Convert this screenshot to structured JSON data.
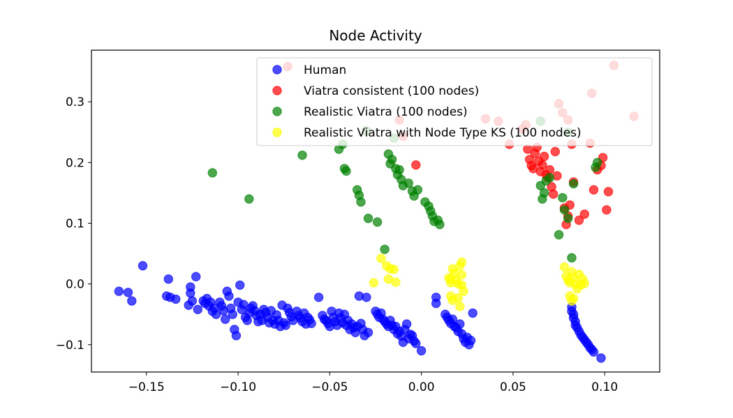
{
  "chart_data": {
    "type": "scatter",
    "title": "Node Activity",
    "xlabel": "",
    "ylabel": "",
    "xlim": [
      -0.18,
      0.13
    ],
    "ylim": [
      -0.145,
      0.385
    ],
    "xticks": [
      -0.15,
      -0.1,
      -0.05,
      0.0,
      0.05,
      0.1
    ],
    "xtick_labels": [
      "−0.15",
      "−0.10",
      "−0.05",
      "0.00",
      "0.05",
      "0.10"
    ],
    "yticks": [
      -0.1,
      0.0,
      0.1,
      0.2,
      0.3
    ],
    "ytick_labels": [
      "−0.1",
      "0.0",
      "0.1",
      "0.2",
      "0.3"
    ],
    "grid": false,
    "legend_position": "top-right",
    "series": [
      {
        "name": "Human",
        "color": "#0000ff",
        "points": [
          [
            -0.165,
            -0.012
          ],
          [
            -0.16,
            -0.014
          ],
          [
            -0.158,
            -0.028
          ],
          [
            -0.152,
            0.03
          ],
          [
            -0.138,
            0.008
          ],
          [
            -0.139,
            -0.02
          ],
          [
            -0.137,
            -0.022
          ],
          [
            -0.134,
            -0.025
          ],
          [
            -0.127,
            -0.035
          ],
          [
            -0.126,
            -0.005
          ],
          [
            -0.126,
            -0.015
          ],
          [
            -0.125,
            -0.028
          ],
          [
            -0.123,
            0.012
          ],
          [
            -0.122,
            -0.042
          ],
          [
            -0.119,
            -0.028
          ],
          [
            -0.118,
            -0.032
          ],
          [
            -0.117,
            -0.024
          ],
          [
            -0.116,
            -0.036
          ],
          [
            -0.115,
            -0.03
          ],
          [
            -0.114,
            -0.045
          ],
          [
            -0.113,
            -0.04
          ],
          [
            -0.112,
            -0.05
          ],
          [
            -0.11,
            -0.03
          ],
          [
            -0.109,
            -0.036
          ],
          [
            -0.108,
            -0.044
          ],
          [
            -0.107,
            -0.058
          ],
          [
            -0.106,
            -0.012
          ],
          [
            -0.105,
            -0.02
          ],
          [
            -0.104,
            -0.04
          ],
          [
            -0.103,
            -0.05
          ],
          [
            -0.102,
            -0.075
          ],
          [
            -0.101,
            -0.085
          ],
          [
            -0.1,
            -0.03
          ],
          [
            -0.099,
            -0.002
          ],
          [
            -0.098,
            -0.042
          ],
          [
            -0.097,
            -0.034
          ],
          [
            -0.096,
            -0.055
          ],
          [
            -0.095,
            -0.06
          ],
          [
            -0.094,
            -0.048
          ],
          [
            -0.093,
            -0.04
          ],
          [
            -0.092,
            -0.036
          ],
          [
            -0.091,
            -0.044
          ],
          [
            -0.09,
            -0.052
          ],
          [
            -0.089,
            -0.062
          ],
          [
            -0.088,
            -0.05
          ],
          [
            -0.087,
            -0.06
          ],
          [
            -0.086,
            -0.042
          ],
          [
            -0.085,
            -0.047
          ],
          [
            -0.084,
            -0.055
          ],
          [
            -0.083,
            -0.064
          ],
          [
            -0.082,
            -0.044
          ],
          [
            -0.081,
            -0.06
          ],
          [
            -0.08,
            -0.066
          ],
          [
            -0.079,
            -0.051
          ],
          [
            -0.078,
            -0.06
          ],
          [
            -0.077,
            -0.07
          ],
          [
            -0.076,
            -0.035
          ],
          [
            -0.075,
            -0.064
          ],
          [
            -0.074,
            -0.068
          ],
          [
            -0.073,
            -0.04
          ],
          [
            -0.072,
            -0.047
          ],
          [
            -0.071,
            -0.054
          ],
          [
            -0.07,
            -0.06
          ],
          [
            -0.068,
            -0.045
          ],
          [
            -0.067,
            -0.052
          ],
          [
            -0.066,
            -0.056
          ],
          [
            -0.065,
            -0.062
          ],
          [
            -0.064,
            -0.048
          ],
          [
            -0.063,
            -0.066
          ],
          [
            -0.062,
            -0.055
          ],
          [
            -0.061,
            -0.059
          ],
          [
            -0.06,
            -0.065
          ],
          [
            -0.056,
            -0.022
          ],
          [
            -0.054,
            -0.052
          ],
          [
            -0.053,
            -0.058
          ],
          [
            -0.052,
            -0.06
          ],
          [
            -0.051,
            -0.065
          ],
          [
            -0.05,
            -0.07
          ],
          [
            -0.049,
            -0.045
          ],
          [
            -0.048,
            -0.055
          ],
          [
            -0.047,
            -0.062
          ],
          [
            -0.046,
            -0.068
          ],
          [
            -0.045,
            -0.048
          ],
          [
            -0.044,
            -0.056
          ],
          [
            -0.043,
            -0.064
          ],
          [
            -0.042,
            -0.05
          ],
          [
            -0.041,
            -0.068
          ],
          [
            -0.04,
            -0.06
          ],
          [
            -0.039,
            -0.075
          ],
          [
            -0.038,
            -0.066
          ],
          [
            -0.037,
            -0.072
          ],
          [
            -0.036,
            -0.08
          ],
          [
            -0.035,
            -0.07
          ],
          [
            -0.034,
            -0.02
          ],
          [
            -0.033,
            -0.065
          ],
          [
            -0.032,
            -0.075
          ],
          [
            -0.031,
            -0.085
          ],
          [
            -0.03,
            -0.022
          ],
          [
            -0.029,
            -0.08
          ],
          [
            -0.025,
            -0.045
          ],
          [
            -0.024,
            -0.05
          ],
          [
            -0.023,
            -0.055
          ],
          [
            -0.022,
            -0.048
          ],
          [
            -0.021,
            -0.058
          ],
          [
            -0.02,
            -0.062
          ],
          [
            -0.019,
            -0.066
          ],
          [
            -0.018,
            -0.07
          ],
          [
            -0.017,
            -0.06
          ],
          [
            -0.016,
            -0.068
          ],
          [
            -0.015,
            -0.075
          ],
          [
            -0.014,
            -0.07
          ],
          [
            -0.013,
            -0.082
          ],
          [
            -0.012,
            -0.078
          ],
          [
            -0.011,
            -0.086
          ],
          [
            -0.01,
            -0.096
          ],
          [
            -0.009,
            -0.075
          ],
          [
            -0.008,
            -0.066
          ],
          [
            -0.007,
            -0.09
          ],
          [
            -0.006,
            -0.083
          ],
          [
            -0.005,
            -0.085
          ],
          [
            -0.004,
            -0.094
          ],
          [
            -0.003,
            -0.098
          ],
          [
            0.0,
            -0.11
          ],
          [
            0.008,
            -0.022
          ],
          [
            0.008,
            -0.032
          ],
          [
            0.013,
            -0.05
          ],
          [
            0.014,
            -0.055
          ],
          [
            0.015,
            -0.06
          ],
          [
            0.016,
            -0.065
          ],
          [
            0.017,
            -0.058
          ],
          [
            0.018,
            -0.07
          ],
          [
            0.019,
            -0.072
          ],
          [
            0.02,
            -0.078
          ],
          [
            0.021,
            -0.066
          ],
          [
            0.022,
            -0.082
          ],
          [
            0.023,
            -0.09
          ],
          [
            0.024,
            -0.096
          ],
          [
            0.025,
            -0.088
          ],
          [
            0.026,
            -0.1
          ],
          [
            0.027,
            -0.093
          ],
          [
            0.028,
            -0.048
          ],
          [
            0.082,
            -0.038
          ],
          [
            0.082,
            -0.045
          ],
          [
            0.083,
            -0.05
          ],
          [
            0.083,
            -0.056
          ],
          [
            0.084,
            -0.062
          ],
          [
            0.084,
            -0.068
          ],
          [
            0.085,
            -0.072
          ],
          [
            0.086,
            -0.078
          ],
          [
            0.087,
            -0.084
          ],
          [
            0.088,
            -0.088
          ],
          [
            0.089,
            -0.092
          ],
          [
            0.09,
            -0.096
          ],
          [
            0.091,
            -0.1
          ],
          [
            0.092,
            -0.105
          ],
          [
            0.093,
            -0.108
          ],
          [
            0.094,
            -0.112
          ],
          [
            0.098,
            -0.122
          ]
        ]
      },
      {
        "name": "Viatra consistent (100 nodes)",
        "color": "#ff0000",
        "points": [
          [
            -0.073,
            0.358
          ],
          [
            -0.012,
            0.27
          ],
          [
            -0.01,
            0.243
          ],
          [
            -0.003,
            0.196
          ],
          [
            0.035,
            0.272
          ],
          [
            0.042,
            0.268
          ],
          [
            0.048,
            0.23
          ],
          [
            0.055,
            0.255
          ],
          [
            0.057,
            0.262
          ],
          [
            0.058,
            0.222
          ],
          [
            0.059,
            0.205
          ],
          [
            0.06,
            0.195
          ],
          [
            0.061,
            0.19
          ],
          [
            0.062,
            0.215
          ],
          [
            0.063,
            0.225
          ],
          [
            0.064,
            0.202
          ],
          [
            0.065,
            0.185
          ],
          [
            0.066,
            0.196
          ],
          [
            0.067,
            0.21
          ],
          [
            0.068,
            0.18
          ],
          [
            0.069,
            0.175
          ],
          [
            0.07,
            0.188
          ],
          [
            0.071,
            0.16
          ],
          [
            0.072,
            0.148
          ],
          [
            0.073,
            0.218
          ],
          [
            0.074,
            0.178
          ],
          [
            0.075,
            0.297
          ],
          [
            0.077,
            0.282
          ],
          [
            0.078,
            0.125
          ],
          [
            0.079,
            0.098
          ],
          [
            0.08,
            0.112
          ],
          [
            0.081,
            0.13
          ],
          [
            0.082,
            0.23
          ],
          [
            0.083,
            0.168
          ],
          [
            0.086,
            0.105
          ],
          [
            0.089,
            0.115
          ],
          [
            0.092,
            0.232
          ],
          [
            0.094,
            0.155
          ],
          [
            0.096,
            0.188
          ],
          [
            0.098,
            0.195
          ],
          [
            0.099,
            0.208
          ],
          [
            0.101,
            0.122
          ],
          [
            0.102,
            0.152
          ],
          [
            0.105,
            0.36
          ],
          [
            0.093,
            0.314
          ],
          [
            0.116,
            0.276
          ],
          [
            0.08,
            0.27
          ]
        ]
      },
      {
        "name": "Realistic Viatra (100 nodes)",
        "color": "#008000",
        "points": [
          [
            -0.114,
            0.183
          ],
          [
            -0.094,
            0.14
          ],
          [
            -0.065,
            0.212
          ],
          [
            -0.045,
            0.222
          ],
          [
            -0.043,
            0.23
          ],
          [
            -0.042,
            0.19
          ],
          [
            -0.041,
            0.186
          ],
          [
            -0.035,
            0.155
          ],
          [
            -0.034,
            0.146
          ],
          [
            -0.033,
            0.135
          ],
          [
            -0.029,
            0.108
          ],
          [
            -0.03,
            0.252
          ],
          [
            -0.024,
            0.102
          ],
          [
            -0.02,
            0.057
          ],
          [
            -0.018,
            0.214
          ],
          [
            -0.017,
            0.198
          ],
          [
            -0.016,
            0.205
          ],
          [
            -0.015,
            0.24
          ],
          [
            -0.014,
            0.19
          ],
          [
            -0.013,
            0.18
          ],
          [
            -0.012,
            0.188
          ],
          [
            -0.011,
            0.172
          ],
          [
            -0.01,
            0.162
          ],
          [
            -0.007,
            0.166
          ],
          [
            -0.005,
            0.153
          ],
          [
            -0.004,
            0.145
          ],
          [
            -0.002,
            0.155
          ],
          [
            0.002,
            0.135
          ],
          [
            0.004,
            0.128
          ],
          [
            0.005,
            0.12
          ],
          [
            0.006,
            0.112
          ],
          [
            0.007,
            0.103
          ],
          [
            0.009,
            0.105
          ],
          [
            0.01,
            0.098
          ],
          [
            0.065,
            0.162
          ],
          [
            0.066,
            0.14
          ],
          [
            0.067,
            0.15
          ],
          [
            0.068,
            0.17
          ],
          [
            0.07,
            0.175
          ],
          [
            0.075,
            0.081
          ],
          [
            0.077,
            0.142
          ],
          [
            0.078,
            0.122
          ],
          [
            0.08,
            0.108
          ],
          [
            0.082,
            0.043
          ],
          [
            0.083,
            0.165
          ],
          [
            0.095,
            0.192
          ],
          [
            0.096,
            0.2
          ],
          [
            0.065,
            0.268
          ],
          [
            0.08,
            0.25
          ]
        ]
      },
      {
        "name": "Realistic Viatra with Node Type KS (100 nodes)",
        "color": "#ffff00",
        "points": [
          [
            -0.026,
            0.002
          ],
          [
            -0.022,
            0.042
          ],
          [
            -0.019,
            0.03
          ],
          [
            -0.018,
            0.008
          ],
          [
            -0.017,
            0.025
          ],
          [
            -0.015,
            0.024
          ],
          [
            -0.014,
            0.003
          ],
          [
            0.015,
            0.01
          ],
          [
            0.016,
            0.008
          ],
          [
            0.016,
            0.002
          ],
          [
            0.017,
            0.025
          ],
          [
            0.018,
            0.018
          ],
          [
            0.019,
            0.006
          ],
          [
            0.02,
            0.0
          ],
          [
            0.021,
            0.03
          ],
          [
            0.022,
            0.015
          ],
          [
            0.022,
            -0.002
          ],
          [
            0.023,
            -0.012
          ],
          [
            0.016,
            -0.02
          ],
          [
            0.017,
            -0.027
          ],
          [
            0.02,
            -0.023
          ],
          [
            0.021,
            -0.037
          ],
          [
            0.022,
            0.036
          ],
          [
            0.078,
            0.028
          ],
          [
            0.079,
            0.013
          ],
          [
            0.08,
            0.006
          ],
          [
            0.081,
            0.002
          ],
          [
            0.082,
            0.02
          ],
          [
            0.083,
            0.01
          ],
          [
            0.084,
            0.0
          ],
          [
            0.085,
            -0.008
          ],
          [
            0.086,
            0.016
          ],
          [
            0.087,
            -0.002
          ],
          [
            0.088,
            0.008
          ],
          [
            0.081,
            -0.02
          ],
          [
            0.082,
            -0.028
          ],
          [
            0.083,
            -0.024
          ],
          [
            0.089,
            0.001
          ]
        ]
      }
    ]
  }
}
